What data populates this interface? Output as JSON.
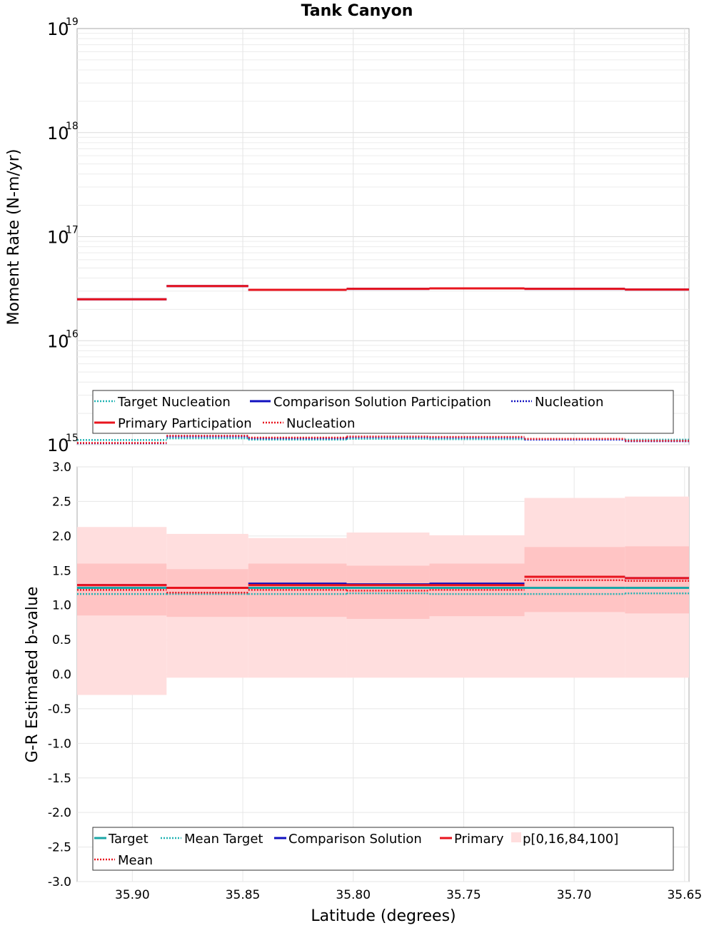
{
  "colors": {
    "target": "#1aa6a6",
    "mean_target": "#20b2b2",
    "comparison": "#1010c0",
    "primary": "#e8141e",
    "band_outer": "#ffdede",
    "band_inner": "#ffc4c4"
  },
  "chart_data": [
    {
      "type": "line",
      "title": "Tank Canyon",
      "ylabel": "Moment Rate (N-m/yr)",
      "y_scale": "log",
      "ylim": [
        1000000000000000.0,
        1e+19
      ],
      "xlim": [
        35.925,
        35.648
      ],
      "x_reversed": true,
      "y_tick_base": "10",
      "y_tick_exponents": [
        "15",
        "16",
        "17",
        "18",
        "19"
      ],
      "bin_edges": [
        35.925,
        35.8845,
        35.8475,
        35.803,
        35.7655,
        35.7225,
        35.677,
        35.648
      ],
      "series": [
        {
          "name": "Target Nucleation",
          "style": "dotted",
          "color_key": "mean_target",
          "values": [
            1110000000000000.0,
            1150000000000000.0,
            1120000000000000.0,
            1140000000000000.0,
            1130000000000000.0,
            1130000000000000.0,
            1120000000000000.0
          ]
        },
        {
          "name": "Comparison Solution Participation",
          "style": "solid",
          "color_key": "comparison",
          "values": [
            2.5e+16,
            3.35e+16,
            3.08e+16,
            3.15e+16,
            3.18e+16,
            3.15e+16,
            3.1e+16
          ]
        },
        {
          "name": "Nucleation",
          "style": "dotted",
          "color_key": "comparison",
          "values": [
            1030000000000000.0,
            1200000000000000.0,
            1150000000000000.0,
            1180000000000000.0,
            1170000000000000.0,
            1120000000000000.0,
            1080000000000000.0
          ]
        },
        {
          "name": "Primary Participation",
          "style": "solid",
          "color_key": "primary",
          "values": [
            2.5e+16,
            3.35e+16,
            3.08e+16,
            3.15e+16,
            3.18e+16,
            3.15e+16,
            3.1e+16
          ]
        },
        {
          "name": "Nucleation",
          "style": "dotted",
          "color_key": "primary",
          "values": [
            1040000000000000.0,
            1220000000000000.0,
            1170000000000000.0,
            1200000000000000.0,
            1190000000000000.0,
            1140000000000000.0,
            1090000000000000.0
          ]
        }
      ],
      "legend": [
        {
          "label": "Target Nucleation",
          "style": "dotted",
          "color_key": "mean_target"
        },
        {
          "label": "Comparison Solution Participation",
          "style": "solid",
          "color_key": "comparison"
        },
        {
          "label": "Nucleation",
          "style": "dotted",
          "color_key": "comparison"
        },
        {
          "label": "Primary Participation",
          "style": "solid",
          "color_key": "primary"
        },
        {
          "label": "Nucleation",
          "style": "dotted",
          "color_key": "primary"
        }
      ]
    },
    {
      "type": "line",
      "title": "",
      "xlabel": "Latitude (degrees)",
      "ylabel": "G-R Estimated b-value",
      "ylim": [
        -3.0,
        3.0
      ],
      "xlim": [
        35.925,
        35.648
      ],
      "x_reversed": true,
      "y_ticks": [
        "3.0",
        "2.5",
        "2.0",
        "1.5",
        "1.0",
        "0.5",
        "0.0",
        "-0.5",
        "-1.0",
        "-1.5",
        "-2.0",
        "-2.5",
        "-3.0"
      ],
      "x_ticks": [
        "35.90",
        "35.85",
        "35.80",
        "35.75",
        "35.70",
        "35.65"
      ],
      "bin_edges": [
        35.925,
        35.8845,
        35.8475,
        35.803,
        35.7655,
        35.7225,
        35.677,
        35.648
      ],
      "bands": {
        "p0": [
          -0.3,
          -0.05,
          -0.05,
          -0.05,
          -0.05,
          -0.05,
          -0.05
        ],
        "p16": [
          0.85,
          0.83,
          0.83,
          0.8,
          0.84,
          0.9,
          0.88
        ],
        "p84": [
          1.6,
          1.52,
          1.6,
          1.57,
          1.6,
          1.84,
          1.85
        ],
        "p100": [
          2.13,
          2.03,
          1.97,
          2.05,
          2.01,
          2.55,
          2.57
        ]
      },
      "series": [
        {
          "name": "Target",
          "style": "solid",
          "color_key": "target",
          "values": [
            1.25,
            1.25,
            1.25,
            1.25,
            1.25,
            1.25,
            1.25
          ]
        },
        {
          "name": "Mean Target",
          "style": "dotted",
          "color_key": "mean_target",
          "values": [
            1.16,
            1.16,
            1.16,
            1.17,
            1.16,
            1.16,
            1.17
          ]
        },
        {
          "name": "Comparison Solution",
          "style": "solid",
          "color_key": "comparison",
          "values": [
            1.29,
            1.25,
            1.31,
            1.3,
            1.31,
            1.41,
            1.39
          ]
        },
        {
          "name": "Primary",
          "style": "solid",
          "color_key": "primary",
          "values": [
            1.29,
            1.25,
            1.29,
            1.29,
            1.29,
            1.41,
            1.39
          ]
        },
        {
          "name": "Mean",
          "style": "dotted",
          "color_key": "primary",
          "values": [
            1.22,
            1.18,
            1.22,
            1.21,
            1.22,
            1.36,
            1.35
          ]
        }
      ],
      "legend": [
        {
          "label": "Target",
          "style": "solid",
          "color_key": "target"
        },
        {
          "label": "Mean Target",
          "style": "dotted",
          "color_key": "mean_target"
        },
        {
          "label": "Comparison Solution",
          "style": "solid",
          "color_key": "comparison"
        },
        {
          "label": "Primary",
          "style": "solid",
          "color_key": "primary"
        },
        {
          "label": "p[0,16,84,100]",
          "style": "box",
          "color_key": "band_outer"
        },
        {
          "label": "Mean",
          "style": "dotted",
          "color_key": "primary"
        }
      ]
    }
  ]
}
